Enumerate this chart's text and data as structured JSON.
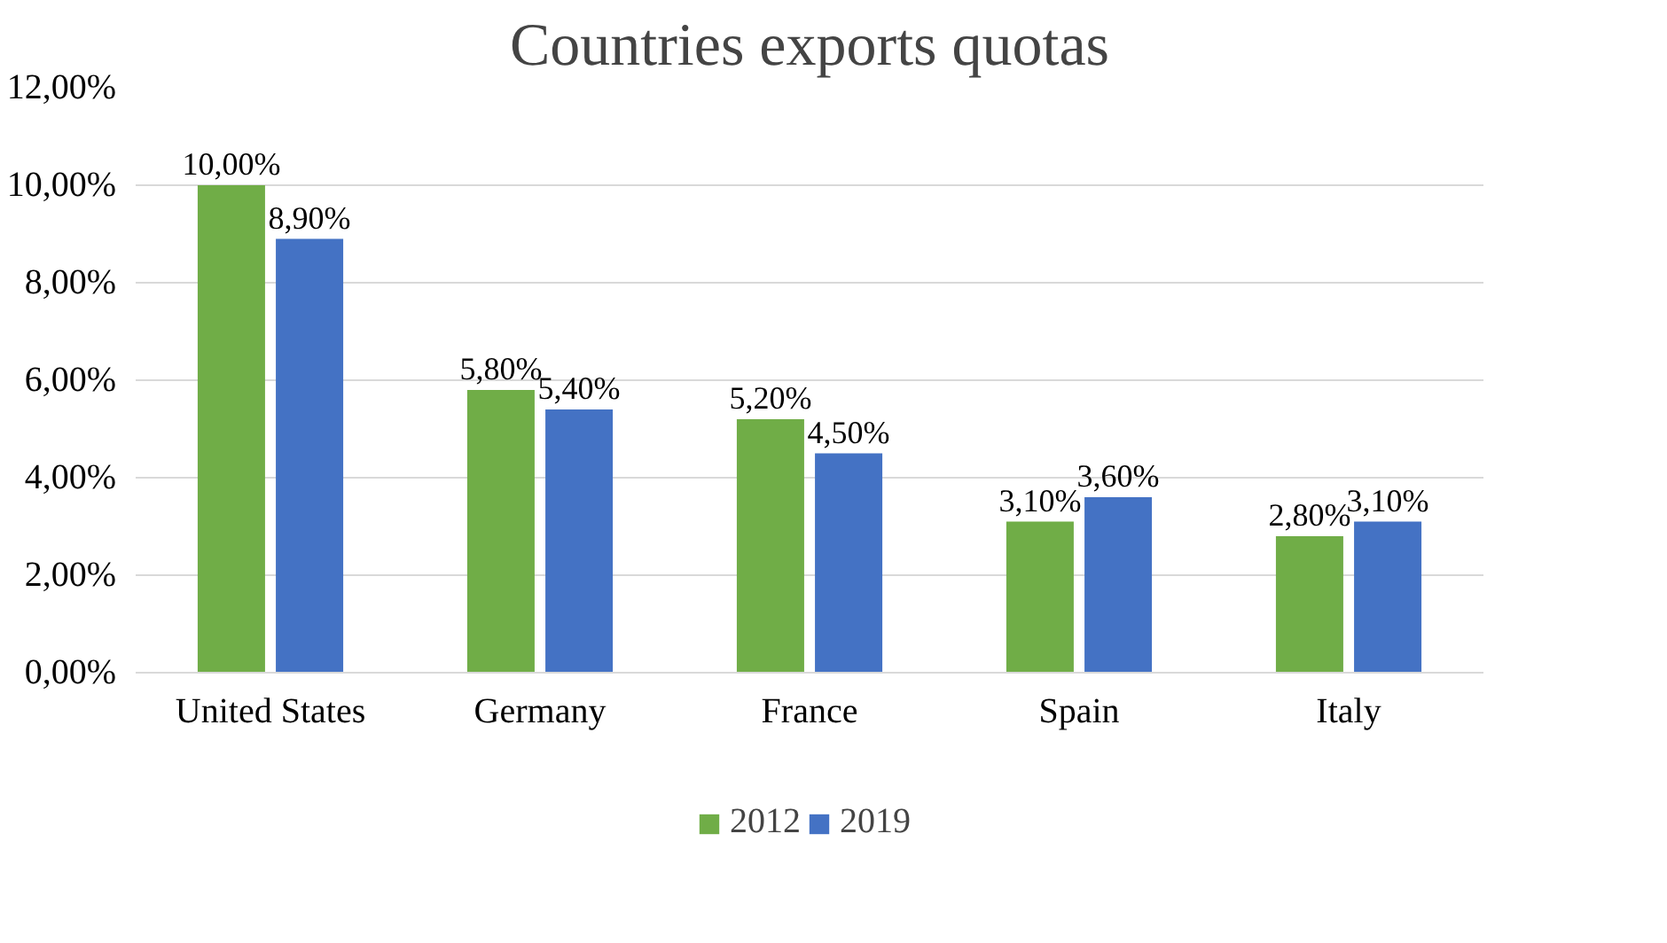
{
  "chart_data": {
    "type": "bar",
    "title": "Countries exports quotas",
    "categories": [
      "United States",
      "Germany",
      "France",
      "Spain",
      "Italy"
    ],
    "series": [
      {
        "name": "2012",
        "color": "#70ad47",
        "values": [
          10.0,
          5.8,
          5.2,
          3.1,
          2.8
        ],
        "value_labels": [
          "10,00%",
          "5,80%",
          "5,20%",
          "3,10%",
          "2,80%"
        ]
      },
      {
        "name": "2019",
        "color": "#4472c4",
        "values": [
          8.9,
          5.4,
          4.5,
          3.6,
          3.1
        ],
        "value_labels": [
          "8,90%",
          "5,40%",
          "4,50%",
          "3,60%",
          "3,10%"
        ]
      }
    ],
    "ylim": [
      0,
      12
    ],
    "yticks": [
      {
        "value": 0,
        "label": "0,00%"
      },
      {
        "value": 2,
        "label": "2,00%"
      },
      {
        "value": 4,
        "label": "4,00%"
      },
      {
        "value": 6,
        "label": "6,00%"
      },
      {
        "value": 8,
        "label": "8,00%"
      },
      {
        "value": 10,
        "label": "10,00%"
      },
      {
        "value": 12,
        "label": "12,00%"
      }
    ],
    "grid": "y",
    "legend": "bottom"
  }
}
